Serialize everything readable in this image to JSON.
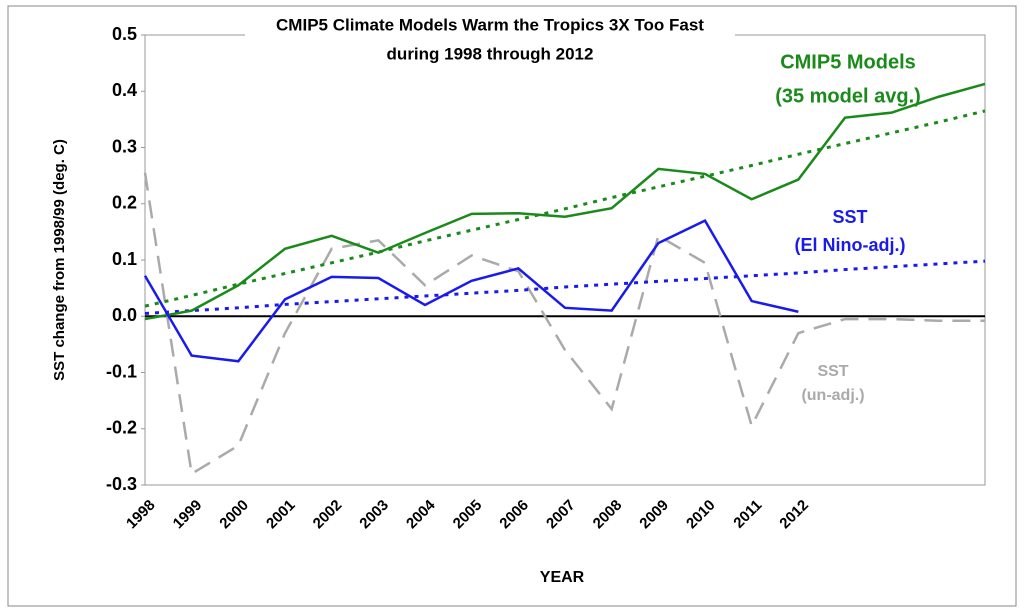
{
  "chart_data": {
    "type": "line",
    "title": [
      "CMIP5 Climate Models Warm the Tropics 3X Too Fast",
      "during 1998 through 2012"
    ],
    "y_label": "SST change from 1998/99 (deg. C)",
    "x_label": "YEAR",
    "categories": [
      "1998",
      "1999",
      "2000",
      "2001",
      "2002",
      "2003",
      "2004",
      "2005",
      "2006",
      "2007",
      "2008",
      "2009",
      "2010",
      "2011",
      "2012",
      null,
      null,
      null,
      null
    ],
    "ylim": [
      -0.3,
      0.5
    ],
    "yticks": [
      0.5,
      0.4,
      0.3,
      0.2,
      0.1,
      {
        "value": 0,
        "label": "0.0"
      },
      -0.1,
      -0.2,
      -0.3
    ],
    "series": [
      {
        "color": "#aaaaaa",
        "dash": "dashed",
        "values": [
          0.255,
          -0.28,
          -0.23,
          -0.03,
          0.12,
          0.135,
          0.055,
          0.108,
          0.08,
          -0.06,
          -0.165,
          0.143,
          0.095,
          -0.195,
          -0.03,
          -0.005,
          -0.005,
          -0.008,
          -0.008
        ]
      },
      {
        "color": "#1a8a1a",
        "dash": "dotted",
        "values": [
          0.018,
          0.037,
          0.057,
          0.076,
          0.095,
          0.114,
          0.134,
          0.153,
          0.172,
          0.191,
          0.211,
          0.23,
          0.249,
          0.268,
          0.288,
          0.307,
          0.326,
          0.345,
          0.365
        ]
      },
      {
        "color": "#1a1aee",
        "dash": "dotted",
        "values": [
          0.005,
          0.01,
          0.015,
          0.021,
          0.026,
          0.031,
          0.036,
          0.041,
          0.046,
          0.052,
          0.057,
          0.062,
          0.067,
          0.072,
          0.077,
          0.083,
          0.088,
          0.093,
          0.098
        ]
      },
      {
        "color": "#1a8a1a",
        "dash": "solid",
        "values": [
          -0.005,
          0.01,
          0.055,
          0.12,
          0.143,
          0.113,
          0.148,
          0.182,
          0.183,
          0.177,
          0.192,
          0.262,
          0.253,
          0.208,
          0.243,
          0.353,
          0.362,
          0.39,
          0.413
        ]
      },
      {
        "color": "#1a1aee",
        "dash": "solid",
        "values": [
          0.072,
          -0.07,
          -0.08,
          0.03,
          0.07,
          0.068,
          0.02,
          0.063,
          0.085,
          0.015,
          0.01,
          0.13,
          0.17,
          0.027,
          0.008,
          null,
          null,
          null,
          null
        ]
      }
    ],
    "annotations": [
      {
        "text": [
          "CMIP5 Models",
          "(35 model avg.)"
        ],
        "color": "#1a8a1a"
      },
      {
        "text": [
          "SST",
          "(El Nino-adj.)"
        ],
        "color": "#1a1aee"
      },
      {
        "text": [
          "SST",
          "(un-adj.)"
        ],
        "color": "#aaaaaa"
      }
    ],
    "grid": false
  }
}
